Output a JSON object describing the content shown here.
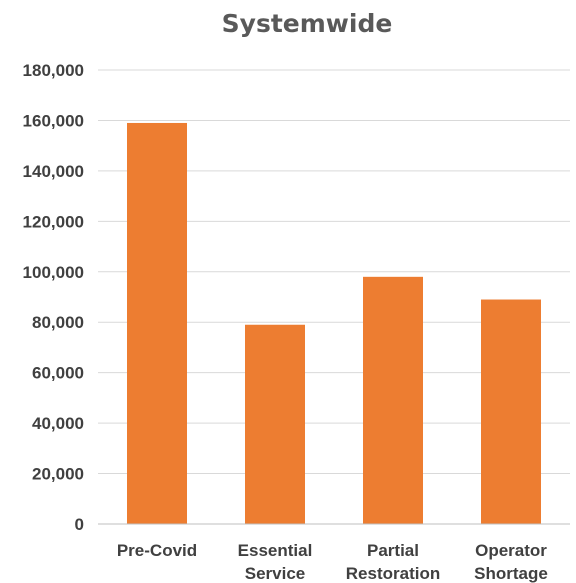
{
  "chart_data": {
    "type": "bar",
    "title": "Systemwide",
    "categories": [
      [
        "Pre-Covid"
      ],
      [
        "Essential",
        "Service"
      ],
      [
        "Partial",
        "Restoration"
      ],
      [
        "Operator",
        "Shortage"
      ]
    ],
    "values": [
      159000,
      79000,
      98000,
      89000
    ],
    "ylim": [
      0,
      180000
    ],
    "yticks": [
      "0",
      "20,000",
      "40,000",
      "60,000",
      "80,000",
      "100,000",
      "120,000",
      "140,000",
      "160,000",
      "180,000"
    ],
    "ytick_values": [
      0,
      20000,
      40000,
      60000,
      80000,
      100000,
      120000,
      140000,
      160000,
      180000
    ],
    "xlabel": "",
    "ylabel": "",
    "grid": true,
    "legend": "none",
    "bar_color": "#ED7D31"
  }
}
